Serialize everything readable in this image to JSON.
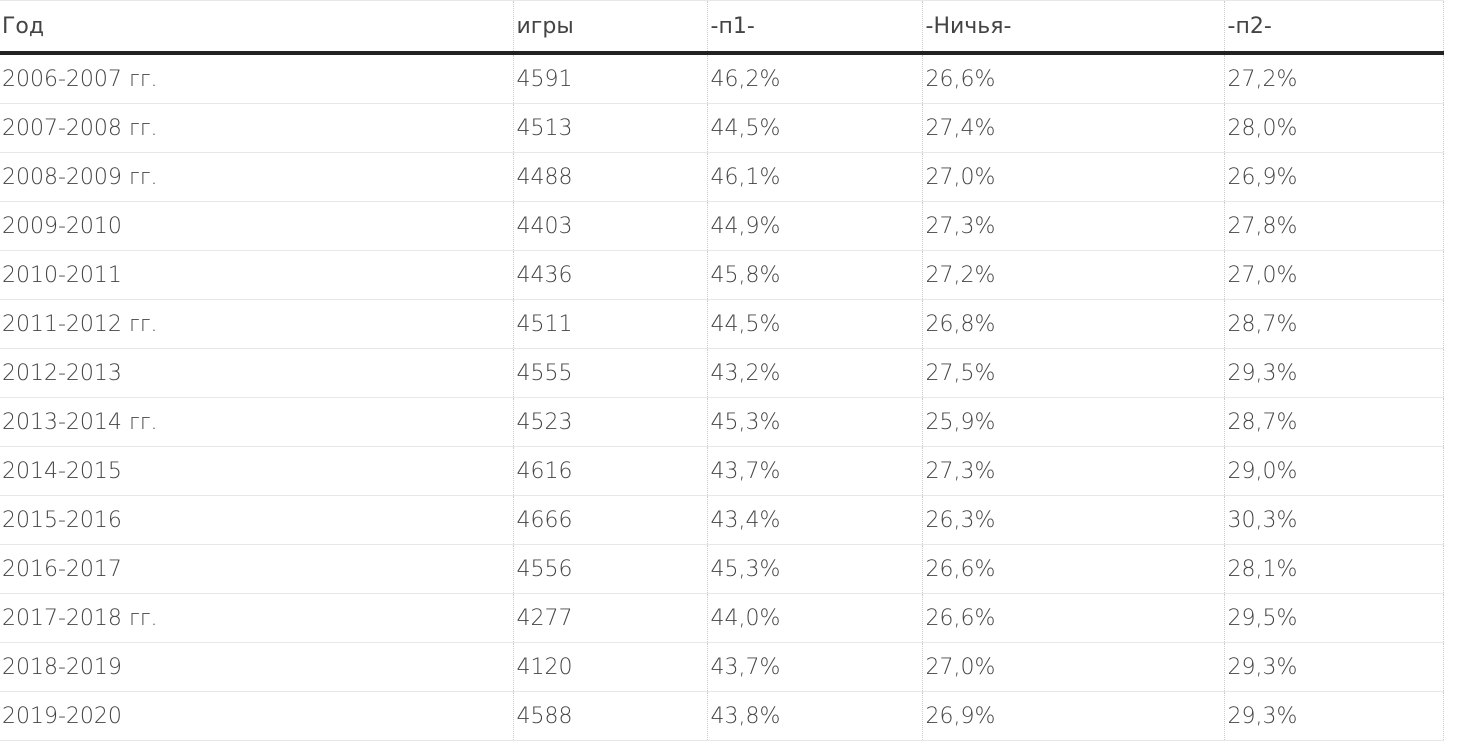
{
  "table": {
    "header": [
      "Год",
      "игры",
      "-п1-",
      "-Ничья-",
      "-п2-"
    ],
    "rows": [
      [
        "2006-2007 гг.",
        "4591",
        "46,2%",
        "26,6%",
        "27,2%"
      ],
      [
        "2007-2008 гг.",
        "4513",
        "44,5%",
        "27,4%",
        "28,0%"
      ],
      [
        "2008-2009 гг.",
        "4488",
        "46,1%",
        "27,0%",
        "26,9%"
      ],
      [
        "2009-2010",
        "4403",
        "44,9%",
        "27,3%",
        "27,8%"
      ],
      [
        "2010-2011",
        "4436",
        "45,8%",
        "27,2%",
        "27,0%"
      ],
      [
        "2011-2012 гг.",
        "4511",
        "44,5%",
        "26,8%",
        "28,7%"
      ],
      [
        "2012-2013",
        "4555",
        "43,2%",
        "27,5%",
        "29,3%"
      ],
      [
        "2013-2014 гг.",
        "4523",
        "45,3%",
        "25,9%",
        "28,7%"
      ],
      [
        "2014-2015",
        "4616",
        "43,7%",
        "27,3%",
        "29,0%"
      ],
      [
        "2015-2016",
        "4666",
        "43,4%",
        "26,3%",
        "30,3%"
      ],
      [
        "2016-2017",
        "4556",
        "45,3%",
        "26,6%",
        "28,1%"
      ],
      [
        "2017-2018 гг.",
        "4277",
        "44,0%",
        "26,6%",
        "29,5%"
      ],
      [
        "2018-2019",
        "4120",
        "43,7%",
        "27,0%",
        "29,3%"
      ],
      [
        "2019-2020",
        "4588",
        "43,8%",
        "26,9%",
        "29,3%"
      ]
    ]
  }
}
